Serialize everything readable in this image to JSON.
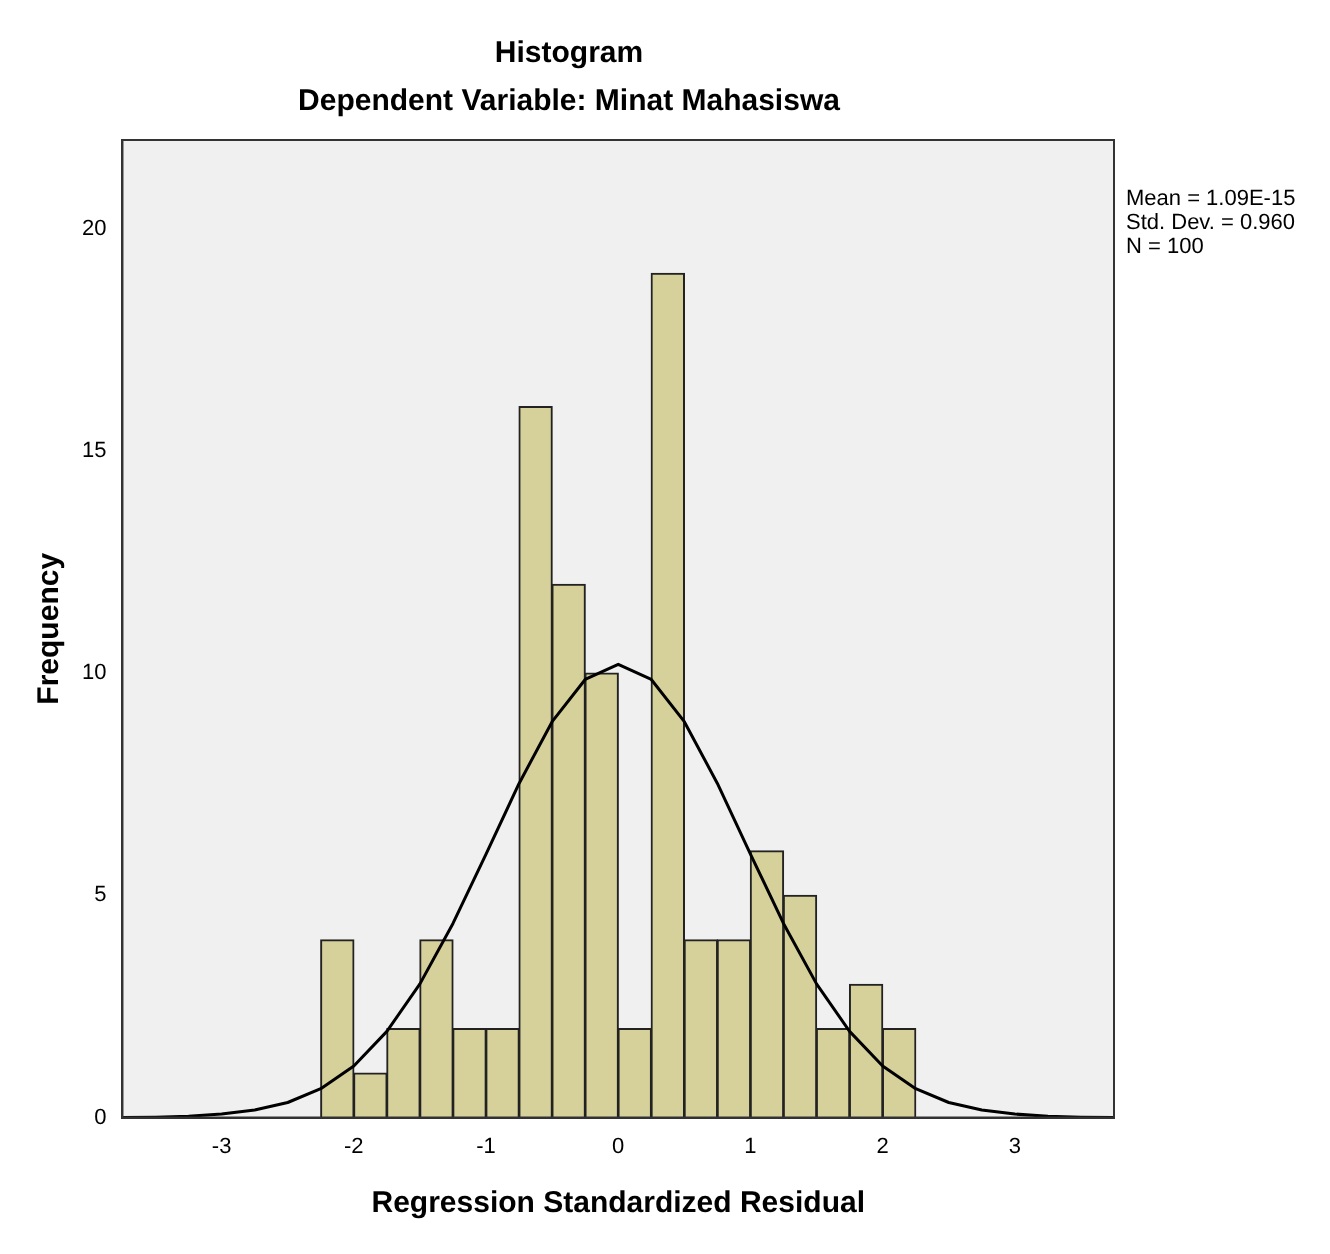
{
  "chart_data": {
    "type": "histogram",
    "title": "Histogram",
    "subtitle": "Dependent Variable: Minat Mahasiswa",
    "xlabel": "Regression Standardized Residual",
    "ylabel": "Frequency",
    "bins": [
      -2.25,
      -2,
      -1.75,
      -1.5,
      -1.25,
      -1,
      -0.75,
      -0.5,
      -0.25,
      0,
      0.25,
      0.5,
      0.75,
      1,
      1.25,
      1.5,
      1.75,
      2,
      2.25
    ],
    "values": [
      4,
      1,
      2,
      4,
      2,
      2,
      16,
      12,
      10,
      2,
      19,
      4,
      4,
      6,
      5,
      2,
      3,
      2
    ],
    "color": "#d6d09a",
    "series": [
      {
        "type": "line",
        "color": "#000000",
        "x": [
          -3.75,
          -3.5,
          -3.25,
          -3,
          -2.75,
          -2.5,
          -2.25,
          -2,
          -1.75,
          -1.5,
          -1.25,
          -1,
          -0.75,
          -0.5,
          -0.25,
          0,
          0.25,
          0.5,
          0.75,
          1,
          1.25,
          1.5,
          1.75,
          2,
          2.25,
          2.5,
          2.75,
          3,
          3.25,
          3.5,
          3.75
        ],
        "values": [
          0,
          0.01,
          0.03,
          0.08,
          0.17,
          0.34,
          0.65,
          1.16,
          1.94,
          3.01,
          4.37,
          5.93,
          7.52,
          8.91,
          9.86,
          10.2,
          9.86,
          8.91,
          7.52,
          5.93,
          4.37,
          3.01,
          1.94,
          1.16,
          0.65,
          0.34,
          0.17,
          0.08,
          0.03,
          0.01,
          0
        ]
      }
    ],
    "xlim": [
      -3.75,
      3.75
    ],
    "xticks": [
      -3,
      -2,
      -1,
      0,
      1,
      2,
      3
    ],
    "ylim": [
      0,
      22
    ],
    "yticks": [
      0,
      5,
      10,
      15,
      20
    ],
    "grid": false,
    "legend": false,
    "annotations": [
      "Mean = 1.09E-15",
      "Std. Dev. = 0.960",
      "N = 100"
    ]
  }
}
